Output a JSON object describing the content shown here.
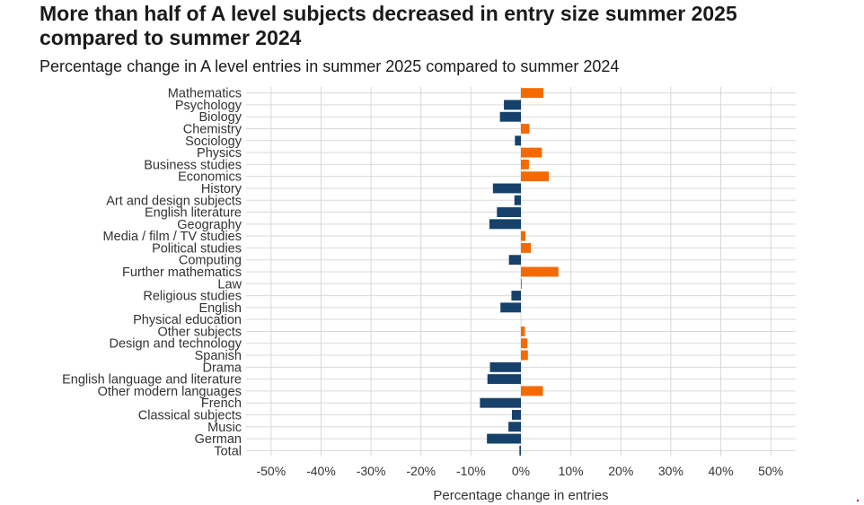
{
  "title": "More than half of A level subjects decreased in entry size summer 2025 compared to summer 2024",
  "subtitle": "Percentage change in A level entries in summer 2025 compared to summer 2024",
  "colors": {
    "increase": "#f46a00",
    "decrease": "#16416b",
    "grid": "#d9d9d9"
  },
  "chart_data": {
    "type": "bar",
    "orientation": "horizontal",
    "title": "More than half of A level subjects decreased in entry size summer 2025 compared to summer 2024",
    "subtitle": "Percentage change in A level entries in summer 2025 compared to summer 2024",
    "xlabel": "Percentage change in entries",
    "ylabel": "",
    "xlim": [
      -55,
      55
    ],
    "xticks": [
      -50,
      -40,
      -30,
      -20,
      -10,
      0,
      10,
      20,
      30,
      40,
      50
    ],
    "xtick_labels": [
      "-50%",
      "-40%",
      "-30%",
      "-20%",
      "-10%",
      "0%",
      "10%",
      "20%",
      "30%",
      "40%",
      "50%"
    ],
    "grid": "vertical",
    "legend": "none",
    "categories": [
      "Mathematics",
      "Psychology",
      "Biology",
      "Chemistry",
      "Sociology",
      "Physics",
      "Business studies",
      "Economics",
      "History",
      "Art and design subjects",
      "English literature",
      "Geography",
      "Media / film / TV studies",
      "Political studies",
      "Computing",
      "Further mathematics",
      "Law",
      "Religious studies",
      "English",
      "Physical education",
      "Other subjects",
      "Design and technology",
      "Spanish",
      "Drama",
      "English language and literature",
      "Other modern languages",
      "French",
      "Classical subjects",
      "Music",
      "German",
      "Total"
    ],
    "values": [
      4.5,
      -3.4,
      -4.2,
      1.7,
      -1.2,
      4.2,
      1.6,
      5.6,
      -5.6,
      -1.3,
      -4.8,
      -6.3,
      0.9,
      2.0,
      -2.4,
      7.5,
      0.2,
      -1.9,
      -4.1,
      0.0,
      0.8,
      1.3,
      1.4,
      -6.2,
      -6.7,
      4.4,
      -8.2,
      -1.8,
      -2.5,
      -6.8,
      -0.3
    ]
  }
}
